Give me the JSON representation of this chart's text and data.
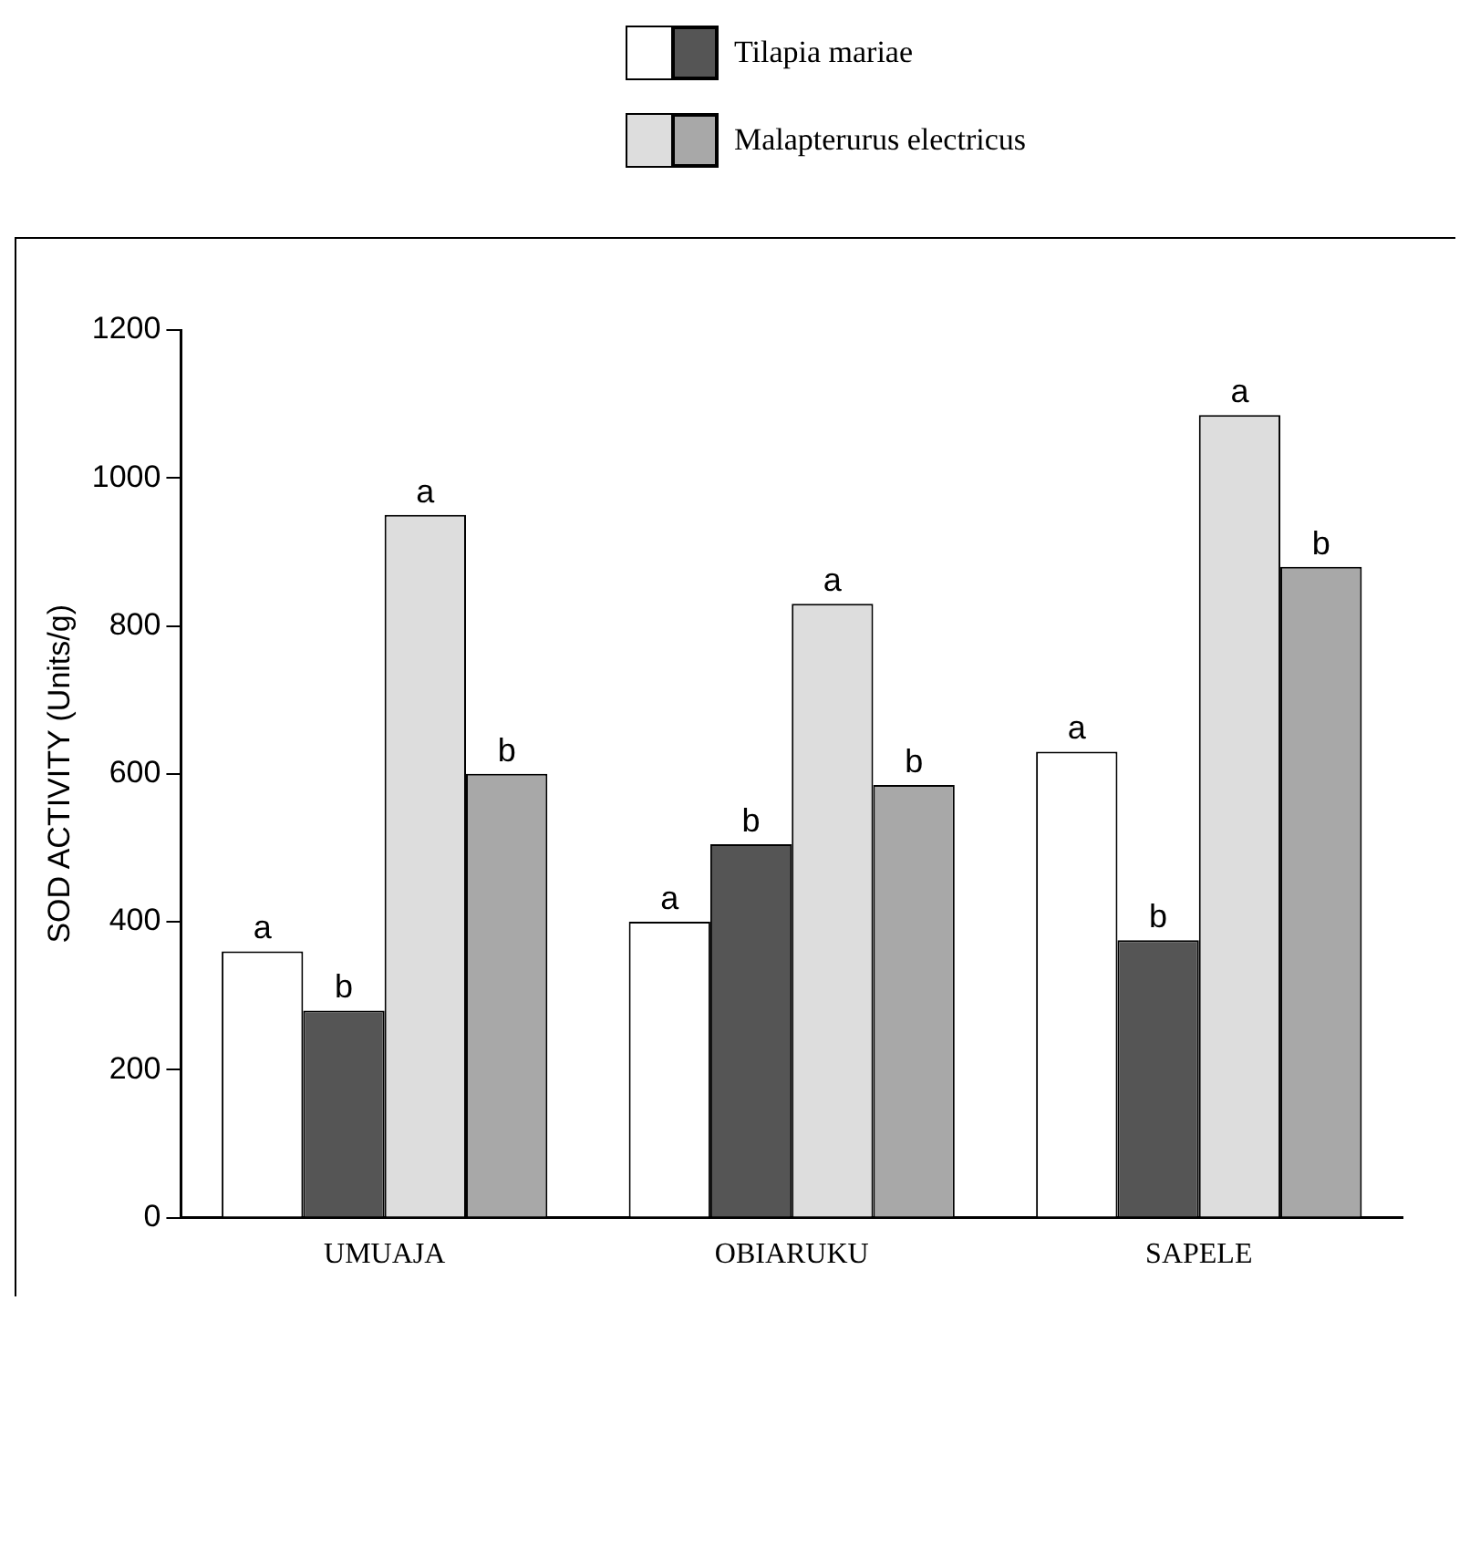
{
  "chart_data": {
    "type": "bar",
    "ylabel": "SOD ACTIVITY (Units/g)",
    "categories": [
      "UMUAJA",
      "OBIARUKU",
      "SAPELE"
    ],
    "series": [
      {
        "color": "#ffffff",
        "values": [
          360,
          400,
          630
        ],
        "value_labels": [
          "a",
          "a",
          "a"
        ]
      },
      {
        "name": "Tilapia mariae",
        "color": "#555555",
        "values": [
          280,
          505,
          375
        ],
        "value_labels": [
          "b",
          "b",
          "b"
        ]
      },
      {
        "color": "#dddddd",
        "values": [
          950,
          830,
          1085
        ],
        "value_labels": [
          "a",
          "a",
          "a"
        ]
      },
      {
        "name": "Malapterurus electricus",
        "color": "#a8a8a8",
        "values": [
          600,
          585,
          880
        ],
        "value_labels": [
          "b",
          "b",
          "b"
        ]
      }
    ],
    "ylim": [
      0,
      1200
    ],
    "yticks": [
      0,
      200,
      400,
      600,
      800,
      1000,
      1200
    ],
    "grid": false,
    "legend": "top"
  }
}
